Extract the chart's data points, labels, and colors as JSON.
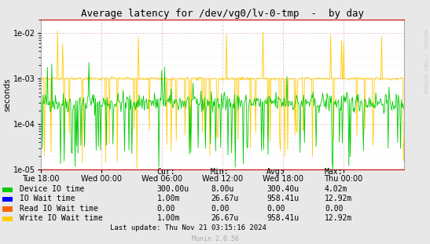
{
  "title": "Average latency for /dev/vg0/lv-0-tmp  -  by day",
  "ylabel": "seconds",
  "bg_color": "#e8e8e8",
  "plot_bg_color": "#ffffff",
  "right_label": "RRDTOOL / TOBI OETIKER",
  "x_tick_labels": [
    "Tue 18:00",
    "Wed 00:00",
    "Wed 06:00",
    "Wed 12:00",
    "Wed 18:00",
    "Thu 00:00"
  ],
  "legend_entries": [
    {
      "label": "Device IO time",
      "color": "#00cc00"
    },
    {
      "label": "IO Wait time",
      "color": "#0000ff"
    },
    {
      "label": "Read IO Wait time",
      "color": "#ff6600"
    },
    {
      "label": "Write IO Wait time",
      "color": "#ffcc00"
    }
  ],
  "legend_headers": [
    "Cur:",
    "Min:",
    "Avg:",
    "Max:"
  ],
  "legend_data": [
    [
      "300.00u",
      "8.00u",
      "300.40u",
      "4.02m"
    ],
    [
      "1.00m",
      "26.67u",
      "958.41u",
      "12.92m"
    ],
    [
      "0.00",
      "0.00",
      "0.00",
      "0.00"
    ],
    [
      "1.00m",
      "26.67u",
      "958.41u",
      "12.92m"
    ]
  ],
  "footer": "Last update: Thu Nov 21 03:15:16 2024",
  "munin_label": "Munin 2.0.56",
  "green_base": 0.0003,
  "yellow_base": 0.001,
  "n_points": 500,
  "seed": 42
}
